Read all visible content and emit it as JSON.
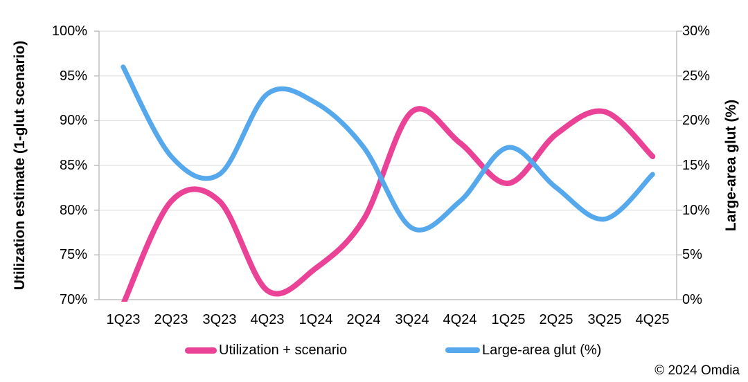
{
  "chart_data": {
    "type": "line",
    "categories": [
      "1Q23",
      "2Q23",
      "3Q23",
      "4Q23",
      "1Q24",
      "2Q24",
      "3Q24",
      "4Q24",
      "1Q25",
      "2Q25",
      "3Q25",
      "4Q25"
    ],
    "series": [
      {
        "name": "Utilization + scenario",
        "axis": "left",
        "color": "#EA4296",
        "line_width": 8,
        "values": [
          69.5,
          81,
          81,
          71,
          73.5,
          79,
          91,
          87.5,
          83,
          88.5,
          91,
          86
        ]
      },
      {
        "name": "Large-area glut (%)",
        "axis": "right",
        "color": "#55A8EC",
        "line_width": 7,
        "values": [
          26,
          16,
          14,
          23,
          22,
          17,
          8,
          11,
          17,
          12.5,
          9,
          14
        ]
      }
    ],
    "left_axis": {
      "title": "Utilization estimate (1-glut scenario)",
      "min": 70,
      "max": 100,
      "tick_step": 5,
      "tick_labels": [
        "100%",
        "95%",
        "90%",
        "85%",
        "80%",
        "75%",
        "70%"
      ]
    },
    "right_axis": {
      "title": "Large-area glut (%)",
      "min": 0,
      "max": 30,
      "tick_step": 5,
      "tick_labels": [
        "30%",
        "25%",
        "20%",
        "15%",
        "10%",
        "5%",
        "0%"
      ]
    },
    "grid": true,
    "legend_position": "bottom",
    "style": {
      "gridline_color": "#E2E2E2",
      "axis_color": "#BFBFBF",
      "text_color": "#000000",
      "background": "#FFFFFF"
    }
  },
  "footer": {
    "copyright": "© 2024 Omdia"
  }
}
